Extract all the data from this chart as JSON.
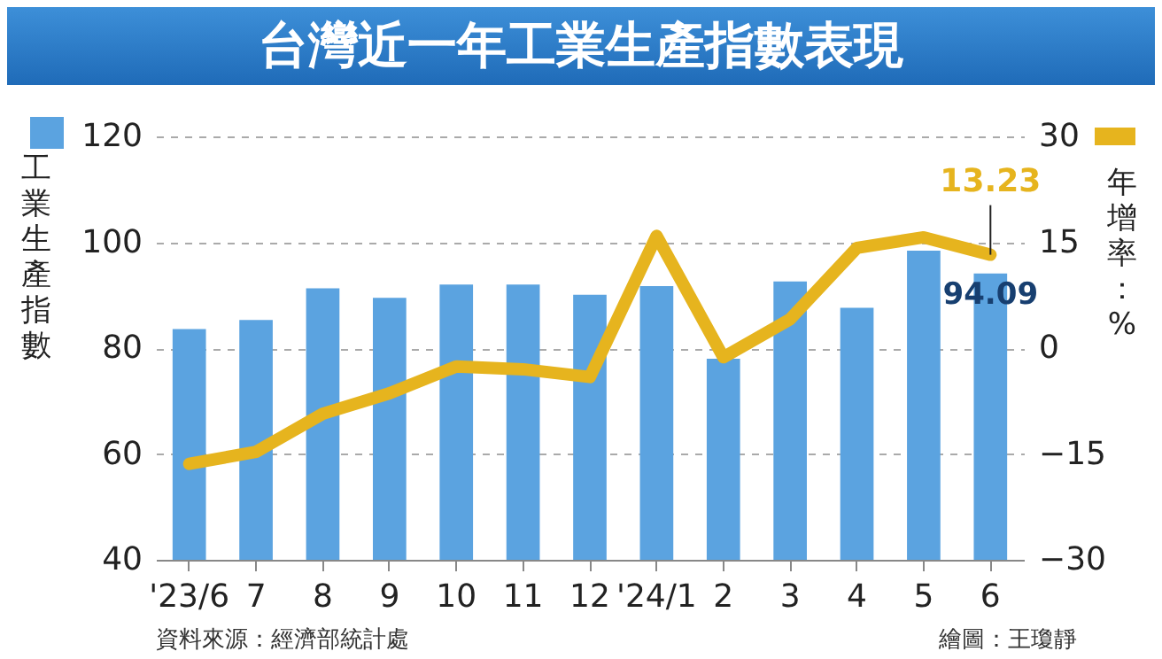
{
  "chart_data": {
    "type": "bar",
    "title": "台灣近一年工業生產指數表現",
    "categories": [
      "'23/6",
      "7",
      "8",
      "9",
      "10",
      "11",
      "12",
      "'24/1",
      "2",
      "3",
      "4",
      "5",
      "6"
    ],
    "series": [
      {
        "color": "#5ba3e0",
        "values": [
          83.6,
          85.3,
          91.3,
          89.5,
          92.0,
          92.0,
          90.1,
          91.7,
          78.0,
          92.6,
          87.6,
          98.4,
          94.09
        ],
        "value_labels": [
          null,
          null,
          null,
          null,
          null,
          null,
          null,
          null,
          null,
          null,
          null,
          null,
          "94.09"
        ]
      },
      {
        "type": "line",
        "axis": "y2",
        "color": "#e6b41e",
        "values": [
          -16.4,
          -14.7,
          -9.3,
          -6.4,
          -2.6,
          -3.0,
          -4.1,
          15.9,
          -1.3,
          4.1,
          14.2,
          15.7,
          13.23
        ],
        "value_labels": [
          null,
          null,
          null,
          null,
          null,
          null,
          null,
          null,
          null,
          null,
          null,
          null,
          "13.23"
        ]
      }
    ],
    "ylabel": "工業生產指數",
    "y2label": "年增率：%",
    "ylim": [
      40,
      120
    ],
    "yticks": [
      40,
      60,
      80,
      100,
      120
    ],
    "y2lim": [
      -30,
      30
    ],
    "y2ticks": [
      -30,
      -15,
      0,
      15,
      30
    ],
    "grid": "y",
    "annotations": [
      "資料來源：經濟部統計處",
      "繪圖：王瓊靜"
    ]
  }
}
